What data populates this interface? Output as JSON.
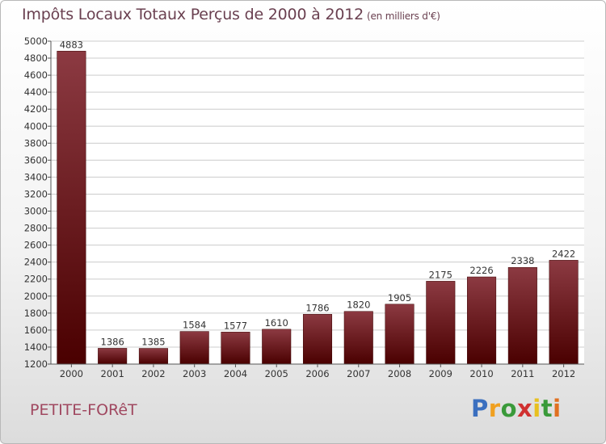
{
  "header": {
    "title": "Impôts Locaux Totaux Perçus de 2000 à 2012",
    "unit": "(en milliers d'€)"
  },
  "footer": {
    "town": "PETITE-FORêT",
    "logo_letters": [
      "P",
      "r",
      "o",
      "x",
      "i",
      "t",
      "i"
    ],
    "logo_colors": [
      "#3a6fbf",
      "#f0a020",
      "#3a9a3a",
      "#d03030",
      "#e8c020",
      "#3a9a3a",
      "#e07020"
    ]
  },
  "colors": {
    "bar_top": "#8c3a42",
    "bar_bottom": "#4a0000",
    "axis": "#555555",
    "grid": "#cccccc"
  },
  "chart_data": {
    "type": "bar",
    "title": "Impôts Locaux Totaux Perçus de 2000 à 2012",
    "xlabel": "",
    "ylabel": "",
    "categories": [
      "2000",
      "2001",
      "2002",
      "2003",
      "2004",
      "2005",
      "2006",
      "2007",
      "2008",
      "2009",
      "2010",
      "2011",
      "2012"
    ],
    "values": [
      4883,
      1386,
      1385,
      1584,
      1577,
      1610,
      1786,
      1820,
      1905,
      2175,
      2226,
      2338,
      2422
    ],
    "ylim": [
      1200,
      5000
    ],
    "yticks": [
      "1200",
      "1400",
      "1600",
      "1800",
      "2000",
      "2200",
      "2400",
      "2600",
      "2800",
      "3000",
      "3200",
      "3400",
      "3600",
      "3800",
      "4000",
      "4200",
      "4400",
      "4600",
      "4800",
      "5000"
    ],
    "legend": "none"
  }
}
